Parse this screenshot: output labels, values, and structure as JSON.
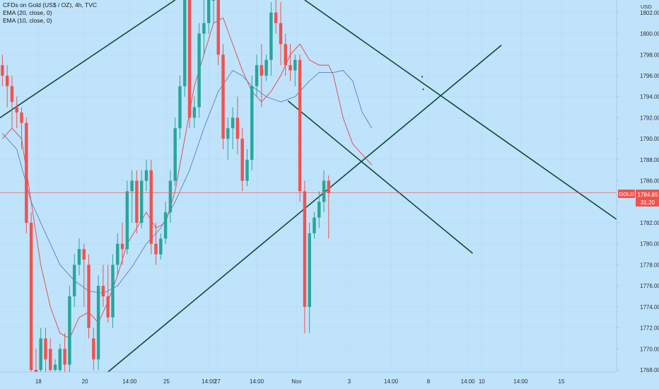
{
  "header": {
    "title": "CFDs on Gold (US$ / OZ), 4h, TVC",
    "ema1": "EMA (20, close, 0)",
    "ema2": "EMA (10, close, 0)"
  },
  "colors": {
    "background": "#bfe3fb",
    "up": "#26a69a",
    "down": "#ef5350",
    "trendline": "#0b4a3a",
    "ema20": "#5b7fbf",
    "ema10": "#e0454a",
    "grid": "#b3d8f2",
    "axis_text": "#2a2e39"
  },
  "chart_data": {
    "type": "candlestick",
    "symbol": "GOLD",
    "currency": "USD",
    "current_price": 1784.85,
    "countdown": "31:20",
    "ylim": [
      1767.8,
      1803.2
    ],
    "xlim": [
      -0.5,
      128
    ],
    "y_ticks": [
      1802,
      1800,
      1798,
      1796,
      1794,
      1792,
      1790,
      1788,
      1786,
      1784,
      1782,
      1780,
      1778,
      1776,
      1774,
      1772,
      1770,
      1768
    ],
    "x_ticks": [
      {
        "label": "18",
        "x": 7.5
      },
      {
        "label": "20",
        "x": 17.2
      },
      {
        "label": "14:00",
        "x": 26.5
      },
      {
        "label": "25",
        "x": 34.2
      },
      {
        "label": "14:00",
        "x": 43
      },
      {
        "label": "27",
        "x": 44.8
      },
      {
        "label": "14:00",
        "x": 53
      },
      {
        "label": "Nov",
        "x": 61.3
      },
      {
        "label": "3",
        "x": 72.3
      },
      {
        "label": "14:00",
        "x": 81
      },
      {
        "label": "8",
        "x": 88.8
      },
      {
        "label": "14:00",
        "x": 97
      },
      {
        "label": "10",
        "x": 99.9
      },
      {
        "label": "14:00",
        "x": 108
      },
      {
        "label": "15",
        "x": 116.5
      }
    ],
    "candles": [
      {
        "o": 1797,
        "h": 1798,
        "c": 1796,
        "l": 1795
      },
      {
        "o": 1796,
        "h": 1797,
        "c": 1795,
        "l": 1793
      },
      {
        "o": 1795,
        "h": 1796,
        "c": 1793.5,
        "l": 1791
      },
      {
        "o": 1793,
        "h": 1794,
        "c": 1792.5,
        "l": 1791
      },
      {
        "o": 1792.5,
        "h": 1793,
        "c": 1791.5,
        "l": 1789
      },
      {
        "o": 1791.5,
        "h": 1792,
        "c": 1782,
        "l": 1781
      },
      {
        "o": 1782,
        "h": 1783,
        "c": 1768,
        "l": 1767.8
      },
      {
        "o": 1768,
        "h": 1770,
        "c": 1767.8,
        "l": 1767.8
      },
      {
        "o": 1768,
        "h": 1772,
        "c": 1771,
        "l": 1767.8
      },
      {
        "o": 1771,
        "h": 1772,
        "c": 1769,
        "l": 1767.8
      },
      {
        "o": 1770,
        "h": 1771,
        "c": 1768,
        "l": 1767.8
      },
      {
        "o": 1768,
        "h": 1769,
        "c": 1768.5,
        "l": 1767.8
      },
      {
        "o": 1768,
        "h": 1770.5,
        "c": 1770,
        "l": 1767.8
      },
      {
        "o": 1770,
        "h": 1771.5,
        "c": 1768.5,
        "l": 1767.8
      },
      {
        "o": 1768.5,
        "h": 1776,
        "c": 1775,
        "l": 1767.8
      },
      {
        "o": 1775,
        "h": 1779,
        "c": 1778,
        "l": 1774
      },
      {
        "o": 1778,
        "h": 1780.5,
        "c": 1779.5,
        "l": 1777
      },
      {
        "o": 1779.5,
        "h": 1780,
        "c": 1778.5,
        "l": 1774
      },
      {
        "o": 1778,
        "h": 1779,
        "c": 1772,
        "l": 1771
      },
      {
        "o": 1771,
        "h": 1772,
        "c": 1769,
        "l": 1768
      },
      {
        "o": 1769,
        "h": 1777,
        "c": 1776,
        "l": 1768
      },
      {
        "o": 1776,
        "h": 1778,
        "c": 1775,
        "l": 1774
      },
      {
        "o": 1775,
        "h": 1778,
        "c": 1773,
        "l": 1772.5
      },
      {
        "o": 1773,
        "h": 1779,
        "c": 1778,
        "l": 1772
      },
      {
        "o": 1778,
        "h": 1781,
        "c": 1780,
        "l": 1777
      },
      {
        "o": 1780,
        "h": 1782,
        "c": 1779.5,
        "l": 1778
      },
      {
        "o": 1779.5,
        "h": 1786,
        "c": 1785,
        "l": 1779
      },
      {
        "o": 1785,
        "h": 1787,
        "c": 1786,
        "l": 1782
      },
      {
        "o": 1786,
        "h": 1787,
        "c": 1782,
        "l": 1781
      },
      {
        "o": 1782,
        "h": 1787,
        "c": 1786,
        "l": 1781.5
      },
      {
        "o": 1786,
        "h": 1788,
        "c": 1787,
        "l": 1785
      },
      {
        "o": 1787,
        "h": 1788,
        "c": 1780,
        "l": 1779
      },
      {
        "o": 1780,
        "h": 1782,
        "c": 1779,
        "l": 1778
      },
      {
        "o": 1779,
        "h": 1781,
        "c": 1780.5,
        "l": 1778.5
      },
      {
        "o": 1780.5,
        "h": 1784,
        "c": 1783,
        "l": 1780
      },
      {
        "o": 1783,
        "h": 1787,
        "c": 1786,
        "l": 1782
      },
      {
        "o": 1786,
        "h": 1792,
        "c": 1791,
        "l": 1785.5
      },
      {
        "o": 1791,
        "h": 1796,
        "c": 1795,
        "l": 1790
      },
      {
        "o": 1795,
        "h": 1803.2,
        "c": 1803.2,
        "l": 1794
      },
      {
        "o": 1803.2,
        "h": 1803.2,
        "c": 1792,
        "l": 1791
      },
      {
        "o": 1792,
        "h": 1794,
        "c": 1793,
        "l": 1791
      },
      {
        "o": 1793,
        "h": 1801,
        "c": 1800,
        "l": 1792
      },
      {
        "o": 1800,
        "h": 1803.2,
        "c": 1801,
        "l": 1798
      },
      {
        "o": 1801,
        "h": 1803.2,
        "c": 1803.2,
        "l": 1800
      },
      {
        "o": 1803.2,
        "h": 1803.2,
        "c": 1803.2,
        "l": 1801
      },
      {
        "o": 1803.2,
        "h": 1803.2,
        "c": 1798,
        "l": 1797
      },
      {
        "o": 1798,
        "h": 1799,
        "c": 1790,
        "l": 1789
      },
      {
        "o": 1790,
        "h": 1792,
        "c": 1791,
        "l": 1788
      },
      {
        "o": 1791,
        "h": 1793,
        "c": 1792,
        "l": 1789
      },
      {
        "o": 1792,
        "h": 1794,
        "c": 1790,
        "l": 1788.5
      },
      {
        "o": 1790,
        "h": 1791,
        "c": 1786,
        "l": 1785
      },
      {
        "o": 1786,
        "h": 1789,
        "c": 1788,
        "l": 1785.5
      },
      {
        "o": 1788,
        "h": 1796,
        "c": 1795,
        "l": 1787
      },
      {
        "o": 1795,
        "h": 1798,
        "c": 1797,
        "l": 1794
      },
      {
        "o": 1797,
        "h": 1799,
        "c": 1796,
        "l": 1793
      },
      {
        "o": 1796,
        "h": 1798,
        "c": 1797.5,
        "l": 1795.5
      },
      {
        "o": 1797.5,
        "h": 1803,
        "c": 1802,
        "l": 1796
      },
      {
        "o": 1802,
        "h": 1803.2,
        "c": 1801,
        "l": 1800
      },
      {
        "o": 1801,
        "h": 1803,
        "c": 1799,
        "l": 1797
      },
      {
        "o": 1799,
        "h": 1800,
        "c": 1797,
        "l": 1796
      },
      {
        "o": 1797,
        "h": 1799,
        "c": 1796.5,
        "l": 1795.5
      },
      {
        "o": 1796.5,
        "h": 1798,
        "c": 1797.5,
        "l": 1795
      },
      {
        "o": 1797.5,
        "h": 1798,
        "c": 1785,
        "l": 1784
      },
      {
        "o": 1785,
        "h": 1786,
        "c": 1774,
        "l": 1771.5
      },
      {
        "o": 1774,
        "h": 1782,
        "c": 1781,
        "l": 1771.5
      },
      {
        "o": 1781,
        "h": 1783,
        "c": 1782.5,
        "l": 1780.5
      },
      {
        "o": 1782.5,
        "h": 1785,
        "c": 1784,
        "l": 1781.5
      },
      {
        "o": 1784,
        "h": 1787,
        "c": 1786,
        "l": 1783
      },
      {
        "o": 1786,
        "h": 1786.5,
        "c": 1784.85,
        "l": 1780.5
      }
    ],
    "ema20": [
      {
        "x": 0,
        "y": 1790.5
      },
      {
        "x": 3,
        "y": 1789
      },
      {
        "x": 6,
        "y": 1784
      },
      {
        "x": 9,
        "y": 1781
      },
      {
        "x": 12,
        "y": 1778
      },
      {
        "x": 15,
        "y": 1776.5
      },
      {
        "x": 18,
        "y": 1775.5
      },
      {
        "x": 21,
        "y": 1775.3
      },
      {
        "x": 24,
        "y": 1776
      },
      {
        "x": 27,
        "y": 1777.8
      },
      {
        "x": 30,
        "y": 1780
      },
      {
        "x": 33,
        "y": 1781.5
      },
      {
        "x": 36,
        "y": 1784
      },
      {
        "x": 39,
        "y": 1787
      },
      {
        "x": 42,
        "y": 1791
      },
      {
        "x": 45,
        "y": 1794.5
      },
      {
        "x": 48,
        "y": 1796.5
      },
      {
        "x": 50,
        "y": 1796
      },
      {
        "x": 52,
        "y": 1795
      },
      {
        "x": 55,
        "y": 1794
      },
      {
        "x": 58,
        "y": 1793.5
      },
      {
        "x": 61,
        "y": 1794
      },
      {
        "x": 64,
        "y": 1795.5
      },
      {
        "x": 66,
        "y": 1796.3
      },
      {
        "x": 69,
        "y": 1796.3
      },
      {
        "x": 71,
        "y": 1796.5
      },
      {
        "x": 73,
        "y": 1795.5
      },
      {
        "x": 75,
        "y": 1792.5
      },
      {
        "x": 77,
        "y": 1791
      }
    ],
    "ema10": [
      {
        "x": 0,
        "y": 1790
      },
      {
        "x": 2,
        "y": 1791
      },
      {
        "x": 4,
        "y": 1790
      },
      {
        "x": 6,
        "y": 1784
      },
      {
        "x": 8,
        "y": 1778
      },
      {
        "x": 10,
        "y": 1774
      },
      {
        "x": 12,
        "y": 1771.5
      },
      {
        "x": 14,
        "y": 1771
      },
      {
        "x": 16,
        "y": 1773
      },
      {
        "x": 18,
        "y": 1773.5
      },
      {
        "x": 20,
        "y": 1772.5
      },
      {
        "x": 22,
        "y": 1774.5
      },
      {
        "x": 24,
        "y": 1777
      },
      {
        "x": 26,
        "y": 1780
      },
      {
        "x": 28,
        "y": 1781.5
      },
      {
        "x": 30,
        "y": 1783
      },
      {
        "x": 32,
        "y": 1781.5
      },
      {
        "x": 34,
        "y": 1782
      },
      {
        "x": 36,
        "y": 1785
      },
      {
        "x": 38,
        "y": 1790
      },
      {
        "x": 40,
        "y": 1795
      },
      {
        "x": 42,
        "y": 1798
      },
      {
        "x": 44,
        "y": 1801
      },
      {
        "x": 46,
        "y": 1801.5
      },
      {
        "x": 48,
        "y": 1799
      },
      {
        "x": 50,
        "y": 1796.5
      },
      {
        "x": 52,
        "y": 1794.5
      },
      {
        "x": 54,
        "y": 1793.5
      },
      {
        "x": 56,
        "y": 1794.5
      },
      {
        "x": 58,
        "y": 1796
      },
      {
        "x": 60,
        "y": 1798
      },
      {
        "x": 62,
        "y": 1799
      },
      {
        "x": 64,
        "y": 1797.5
      },
      {
        "x": 66,
        "y": 1797
      },
      {
        "x": 68,
        "y": 1797
      },
      {
        "x": 69,
        "y": 1796
      },
      {
        "x": 71,
        "y": 1792
      },
      {
        "x": 73,
        "y": 1789.5
      },
      {
        "x": 75,
        "y": 1788.5
      },
      {
        "x": 77,
        "y": 1787.5
      }
    ],
    "trendlines": [
      {
        "x1": -0.5,
        "y1": 1792,
        "x2": 36,
        "y2": 1803.2
      },
      {
        "x1": 63,
        "y1": 1803.2,
        "x2": 134,
        "y2": 1780.4
      },
      {
        "x1": 59.5,
        "y1": 1793.6,
        "x2": 98,
        "y2": 1779.1
      },
      {
        "x1": 22,
        "y1": 1767.8,
        "x2": 104,
        "y2": 1798.9
      }
    ],
    "markers": [
      {
        "x": 87.5,
        "y": 1795.9
      },
      {
        "x": 87.7,
        "y": 1794.7
      }
    ]
  }
}
